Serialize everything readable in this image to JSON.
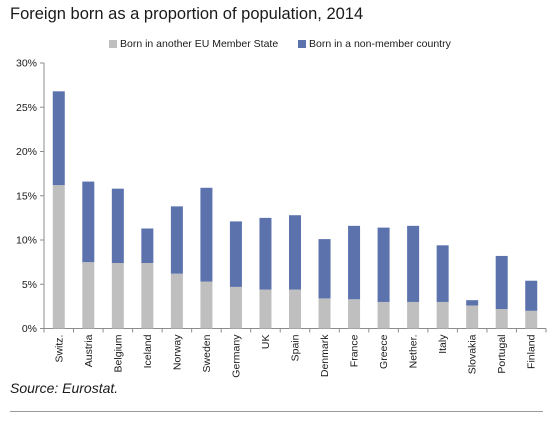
{
  "title": "Foreign born as a proportion of population, 2014",
  "source": "Source:  Eurostat.",
  "colors": {
    "eu": "#bfbfbf",
    "non_eu": "#5b72ad",
    "axis": "#8c8c8c"
  },
  "chart_data": {
    "type": "bar",
    "stacked": true,
    "categories": [
      "Switz.",
      "Austria",
      "Belgium",
      "Iceland",
      "Norway",
      "Sweden",
      "Germany",
      "UK",
      "Spain",
      "Denmark",
      "France",
      "Greece",
      "Nether.",
      "Italy",
      "Slovakia",
      "Portugal",
      "Finland"
    ],
    "series": [
      {
        "name": "Born in another EU Member State",
        "values": [
          16.2,
          7.5,
          7.4,
          7.4,
          6.2,
          5.3,
          4.7,
          4.4,
          4.4,
          3.4,
          3.3,
          3.0,
          3.0,
          3.0,
          2.6,
          2.2,
          2.0
        ]
      },
      {
        "name": "Born in a non-member country",
        "values": [
          10.6,
          9.1,
          8.4,
          3.9,
          7.6,
          10.6,
          7.4,
          8.1,
          8.4,
          6.7,
          8.3,
          8.4,
          8.6,
          6.4,
          0.6,
          6.0,
          3.4
        ]
      }
    ],
    "ylim": [
      0,
      30
    ],
    "yticks": [
      "0%",
      "5%",
      "10%",
      "15%",
      "20%",
      "25%",
      "30%"
    ],
    "grid": false,
    "legend_position": "top"
  }
}
